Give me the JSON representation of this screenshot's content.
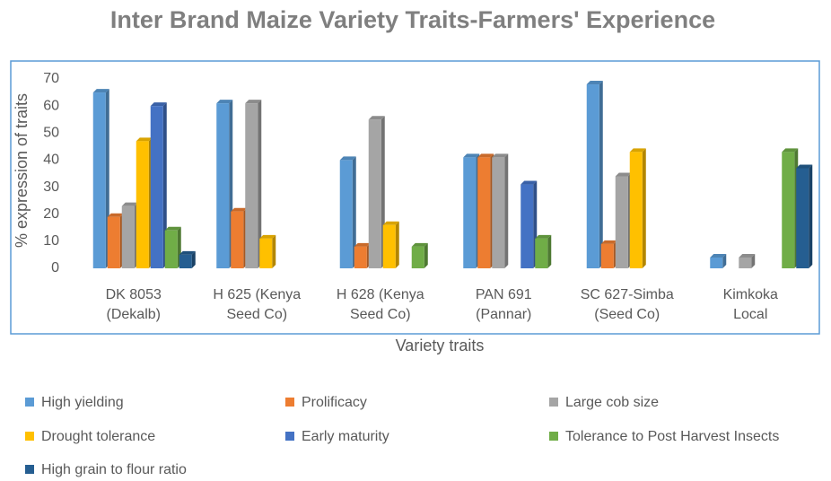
{
  "chart_data": {
    "type": "bar",
    "title": "Inter Brand Maize Variety Traits-Farmers' Experience",
    "x_label": "Variety traits",
    "y_label": "% expression of  traits",
    "categories": [
      "DK 8053\n(Dekalb)",
      "H 625 (Kenya\nSeed Co)",
      "H 628 (Kenya\nSeed Co)",
      "PAN 691\n(Pannar)",
      "SC 627-Simba\n(Seed Co)",
      "Kimkoka\nLocal"
    ],
    "series": [
      {
        "name": "High yielding",
        "color": "#5b9bd5",
        "values": [
          65,
          61,
          40,
          41,
          68,
          4
        ]
      },
      {
        "name": "Prolificacy",
        "color": "#ed7d31",
        "values": [
          19,
          21,
          8,
          41,
          9,
          0
        ]
      },
      {
        "name": "Large cob size",
        "color": "#a5a5a5",
        "values": [
          23,
          61,
          55,
          41,
          34,
          4
        ]
      },
      {
        "name": "Drought tolerance",
        "color": "#ffc000",
        "values": [
          47,
          11,
          16,
          0,
          43,
          0
        ]
      },
      {
        "name": "Early maturity",
        "color": "#4472c4",
        "values": [
          60,
          0,
          0,
          31,
          0,
          0
        ]
      },
      {
        "name": "Tolerance to Post Harvest Insects",
        "color": "#70ad47",
        "values": [
          14,
          0,
          8,
          11,
          0,
          43
        ]
      },
      {
        "name": "High grain to flour ratio",
        "color": "#255e91",
        "values": [
          5,
          0,
          0,
          0,
          0,
          37
        ]
      }
    ],
    "ylim": [
      0,
      70
    ],
    "yticks": [
      0,
      10,
      20,
      30,
      40,
      50,
      60,
      70
    ],
    "grid": false,
    "legend": "bottom"
  }
}
